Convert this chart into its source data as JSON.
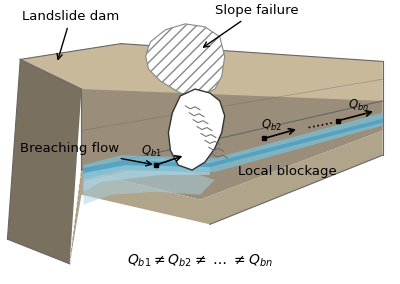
{
  "bg_color": "#ffffff",
  "dam_left_color": "#7a7060",
  "dam_top_color": "#c8b99a",
  "dam_front_color": "#9a8e7a",
  "dam_right_color": "#b0a48a",
  "water_deep": "#4a9fc0",
  "water_mid": "#7abfd8",
  "water_light": "#a8d4e6",
  "water_spread": "#88c0d8",
  "slope_hatch_color": "#aaaaaa",
  "blockage_color": "#e8e5dc",
  "blockage_edge": "#333333",
  "arrow_color": "#000000",
  "labels": {
    "landslide_dam": "Landslide dam",
    "slope_failure": "Slope failure",
    "breaching_flow": "Breaching flow",
    "local_blockage": "Local blockage"
  },
  "figsize": [
    4.0,
    2.84
  ],
  "dpi": 100
}
